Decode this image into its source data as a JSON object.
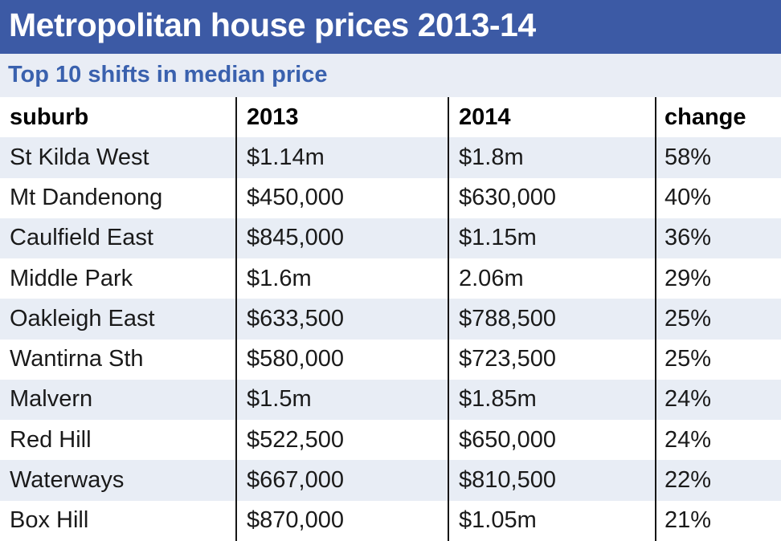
{
  "chart_data": {
    "type": "table",
    "title": "Metropolitan house prices 2013-14",
    "subtitle": "Top 10 shifts in median price",
    "columns": [
      "suburb",
      "2013",
      "2014",
      "change"
    ],
    "rows": [
      [
        "St Kilda West",
        "$1.14m",
        "$1.8m",
        "58%"
      ],
      [
        "Mt Dandenong",
        "$450,000",
        "$630,000",
        "40%"
      ],
      [
        "Caulfield East",
        "$845,000",
        "$1.15m",
        "36%"
      ],
      [
        "Middle Park",
        "$1.6m",
        "2.06m",
        "29%"
      ],
      [
        "Oakleigh East",
        "$633,500",
        "$788,500",
        "25%"
      ],
      [
        "Wantirna Sth",
        "$580,000",
        "$723,500",
        "25%"
      ],
      [
        "Malvern",
        "$1.5m",
        "$1.85m",
        "24%"
      ],
      [
        "Red Hill",
        "$522,500",
        "$650,000",
        "24%"
      ],
      [
        "Waterways",
        "$667,000",
        "$810,500",
        "22%"
      ],
      [
        "Box Hill",
        "$870,000",
        "$1.05m",
        "21%"
      ]
    ],
    "layout": {
      "legend": "none",
      "grid": "column-dividers-only",
      "row_striping": "odd-rows-light-blue"
    }
  },
  "colors": {
    "title_bar_bg": "#3c5aa5",
    "title_text": "#ffffff",
    "subtitle_bar_bg": "#e9edf5",
    "subtitle_text": "#3a61ae",
    "alt_row_bg": "#e8edf5",
    "divider_line": "#161616",
    "cell_text": "#1a1a1a"
  }
}
